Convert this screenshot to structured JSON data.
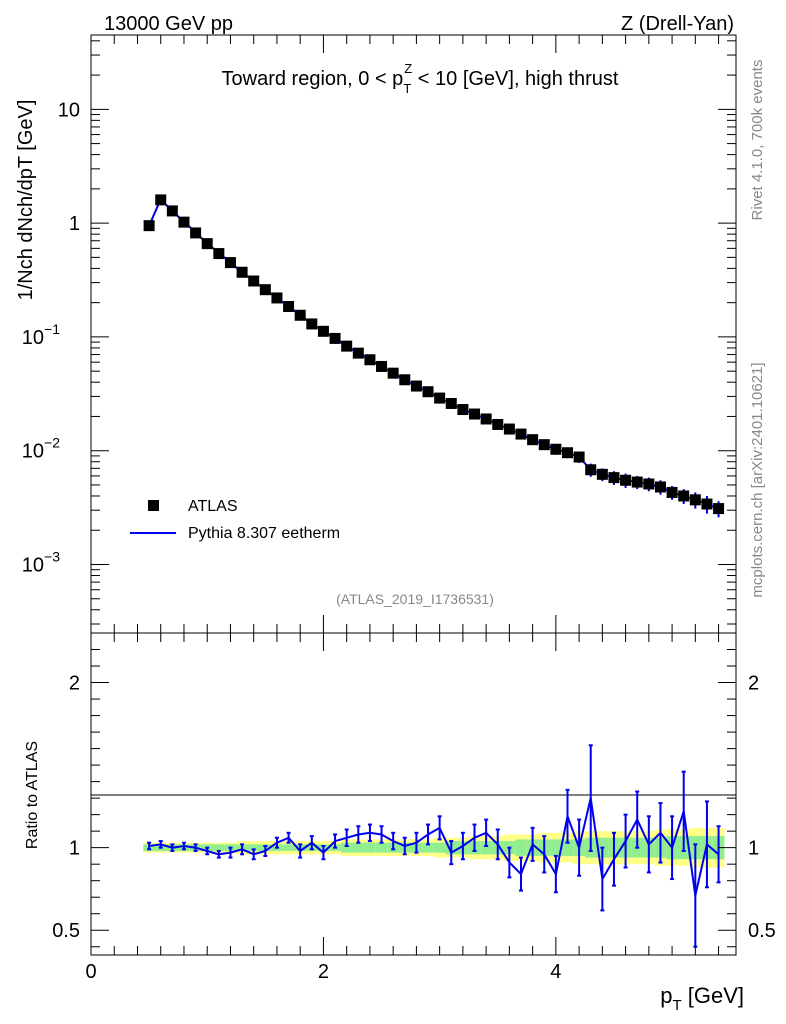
{
  "header": {
    "left": "13000 GeV pp",
    "right": "Z (Drell-Yan)"
  },
  "side_labels": {
    "rivet": "Rivet 4.1.0,  700k events",
    "mcplots": "mcplots.cern.ch [arXiv:2401.10621]"
  },
  "chart_data": [
    {
      "type": "scatter",
      "panel": "main",
      "title": "Toward region, 0 < pTZ < 10 [GeV], high thrust",
      "title_parts": {
        "pre": "Toward region, 0 < p",
        "sub": "T",
        "sup": "Z",
        "post": " < 10 [GeV], high thrust"
      },
      "ylabel": "1/Nch dNch/dpT [GeV]",
      "yscale": "log",
      "xlim": [
        0,
        5.55
      ],
      "ylim": [
        0.00025,
        45
      ],
      "ytick_labels": [
        {
          "value": 10,
          "label": "10"
        },
        {
          "value": 1,
          "label": "1"
        },
        {
          "value": 0.1,
          "label": "10",
          "exp": "−1"
        },
        {
          "value": 0.01,
          "label": "10",
          "exp": "−2"
        },
        {
          "value": 0.001,
          "label": "10",
          "exp": "−3"
        }
      ],
      "ref_label": "(ATLAS_2019_I1736531)",
      "legend": {
        "position": "lower-left",
        "entries": [
          "ATLAS",
          "Pythia 8.307 eetherm"
        ]
      },
      "x": [
        0.5,
        0.6,
        0.7,
        0.8,
        0.9,
        1.0,
        1.1,
        1.2,
        1.3,
        1.4,
        1.5,
        1.6,
        1.7,
        1.8,
        1.9,
        2.0,
        2.1,
        2.2,
        2.3,
        2.4,
        2.5,
        2.6,
        2.7,
        2.8,
        2.9,
        3.0,
        3.1,
        3.2,
        3.3,
        3.4,
        3.5,
        3.6,
        3.7,
        3.8,
        3.9,
        4.0,
        4.1,
        4.2,
        4.3,
        4.4,
        4.5,
        4.6,
        4.7,
        4.8,
        4.9,
        5.0,
        5.1,
        5.2,
        5.3,
        5.4
      ],
      "series": [
        {
          "name": "ATLAS",
          "marker": "square",
          "color": "#000000",
          "values": [
            0.95,
            1.6,
            1.28,
            1.02,
            0.82,
            0.66,
            0.54,
            0.45,
            0.37,
            0.31,
            0.26,
            0.22,
            0.185,
            0.155,
            0.13,
            0.112,
            0.097,
            0.083,
            0.072,
            0.063,
            0.055,
            0.048,
            0.042,
            0.037,
            0.033,
            0.029,
            0.026,
            0.023,
            0.021,
            0.019,
            0.017,
            0.0155,
            0.014,
            0.0125,
            0.0113,
            0.0103,
            0.0096,
            0.0088,
            0.0068,
            0.0062,
            0.0058,
            0.0055,
            0.0053,
            0.0051,
            0.0048,
            0.0043,
            0.004,
            0.0037,
            0.0034,
            0.0031
          ]
        },
        {
          "name": "Pythia 8.307 eetherm",
          "marker": "line",
          "color": "#0000ee",
          "values": [
            0.95,
            1.62,
            1.27,
            1.03,
            0.83,
            0.66,
            0.55,
            0.45,
            0.37,
            0.31,
            0.26,
            0.22,
            0.185,
            0.155,
            0.13,
            0.112,
            0.097,
            0.083,
            0.072,
            0.063,
            0.055,
            0.048,
            0.042,
            0.037,
            0.033,
            0.029,
            0.026,
            0.023,
            0.021,
            0.019,
            0.017,
            0.0155,
            0.014,
            0.0125,
            0.0113,
            0.0103,
            0.0096,
            0.0088,
            0.0068,
            0.0062,
            0.0058,
            0.0055,
            0.0053,
            0.0051,
            0.0048,
            0.0043,
            0.004,
            0.0037,
            0.0034,
            0.0031
          ],
          "errors": [
            0.03,
            0.04,
            0.03,
            0.02,
            0.02,
            0.015,
            0.012,
            0.01,
            0.008,
            0.007,
            0.006,
            0.005,
            0.005,
            0.004,
            0.004,
            0.003,
            0.003,
            0.0025,
            0.0025,
            0.002,
            0.002,
            0.002,
            0.0018,
            0.0018,
            0.0016,
            0.0015,
            0.0014,
            0.0014,
            0.0013,
            0.0013,
            0.0012,
            0.0012,
            0.0011,
            0.0011,
            0.0011,
            0.0011,
            0.001,
            0.001,
            0.0009,
            0.0008,
            0.0008,
            0.0008,
            0.0007,
            0.0007,
            0.0007,
            0.0006,
            0.0006,
            0.0006,
            0.0006,
            0.0005
          ]
        }
      ]
    },
    {
      "type": "line",
      "panel": "ratio",
      "ylabel": "Ratio to ATLAS",
      "xlabel": "pT [GeV]",
      "xlim": [
        0,
        5.55
      ],
      "ylim": [
        0.35,
        2.3
      ],
      "xtick_labels": [
        "0",
        "2",
        "4"
      ],
      "xtick_values": [
        0,
        2,
        4
      ],
      "ytick_labels": [
        "0.5",
        "1",
        "2"
      ],
      "ytick_values": [
        0.5,
        1,
        2
      ],
      "band_colors": {
        "inner": "#90ee90",
        "outer": "#ffff88",
        "reference": "#000000"
      },
      "band_inner": [
        0.02,
        0.02,
        0.02,
        0.02,
        0.02,
        0.02,
        0.02,
        0.02,
        0.02,
        0.02,
        0.02,
        0.02,
        0.02,
        0.02,
        0.02,
        0.02,
        0.02,
        0.03,
        0.03,
        0.03,
        0.03,
        0.03,
        0.03,
        0.03,
        0.03,
        0.03,
        0.04,
        0.04,
        0.04,
        0.04,
        0.04,
        0.04,
        0.05,
        0.05,
        0.05,
        0.05,
        0.05,
        0.05,
        0.06,
        0.06,
        0.06,
        0.06,
        0.06,
        0.06,
        0.06,
        0.07,
        0.07,
        0.07,
        0.07,
        0.07
      ],
      "band_outer": [
        0.03,
        0.03,
        0.03,
        0.03,
        0.03,
        0.03,
        0.03,
        0.03,
        0.04,
        0.04,
        0.04,
        0.04,
        0.04,
        0.04,
        0.04,
        0.04,
        0.04,
        0.05,
        0.05,
        0.05,
        0.05,
        0.05,
        0.05,
        0.05,
        0.05,
        0.06,
        0.06,
        0.06,
        0.07,
        0.07,
        0.07,
        0.08,
        0.08,
        0.08,
        0.09,
        0.09,
        0.09,
        0.1,
        0.1,
        0.1,
        0.1,
        0.1,
        0.1,
        0.1,
        0.11,
        0.11,
        0.11,
        0.12,
        0.12,
        0.12
      ],
      "series": [
        {
          "name": "Pythia 8.307 eetherm / ATLAS",
          "color": "#0000ee",
          "values": [
            1.01,
            1.02,
            1.0,
            1.01,
            1.0,
            0.98,
            0.96,
            0.97,
            0.99,
            0.96,
            0.98,
            1.03,
            1.06,
            0.98,
            1.03,
            0.97,
            1.04,
            1.06,
            1.08,
            1.09,
            1.08,
            1.04,
            1.01,
            1.03,
            1.08,
            1.12,
            0.97,
            1.01,
            1.06,
            1.09,
            1.02,
            0.91,
            0.84,
            1.02,
            0.96,
            0.84,
            1.19,
            1.0,
            1.3,
            0.81,
            0.93,
            1.04,
            1.17,
            1.02,
            1.09,
            1.0,
            1.22,
            0.71,
            1.02,
            0.96
          ],
          "errors": [
            0.02,
            0.02,
            0.02,
            0.02,
            0.02,
            0.02,
            0.02,
            0.03,
            0.03,
            0.03,
            0.03,
            0.03,
            0.03,
            0.04,
            0.04,
            0.04,
            0.04,
            0.05,
            0.05,
            0.05,
            0.05,
            0.05,
            0.05,
            0.06,
            0.06,
            0.07,
            0.07,
            0.08,
            0.08,
            0.08,
            0.09,
            0.09,
            0.1,
            0.1,
            0.11,
            0.11,
            0.16,
            0.17,
            0.32,
            0.19,
            0.16,
            0.16,
            0.17,
            0.17,
            0.18,
            0.19,
            0.24,
            0.31,
            0.26,
            0.17
          ]
        }
      ]
    }
  ]
}
